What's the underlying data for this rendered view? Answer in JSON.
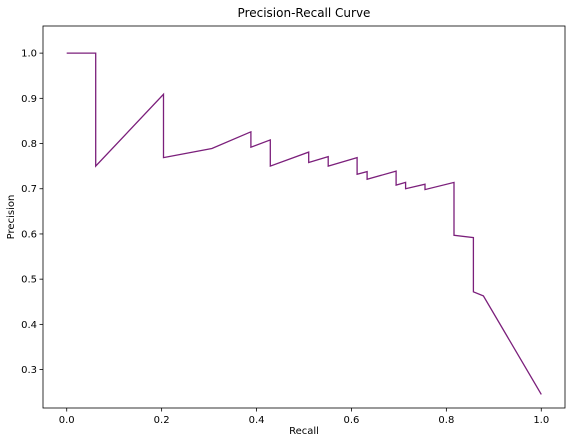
{
  "chart_data": {
    "type": "line",
    "title": "Precision-Recall Curve",
    "xlabel": "Recall",
    "ylabel": "Precision",
    "xlim": [
      -0.05,
      1.05
    ],
    "ylim": [
      0.215,
      1.06
    ],
    "xticks": [
      0.0,
      0.2,
      0.4,
      0.6,
      0.8,
      1.0
    ],
    "xtick_labels": [
      "0.0",
      "0.2",
      "0.4",
      "0.6",
      "0.8",
      "1.0"
    ],
    "yticks": [
      0.3,
      0.4,
      0.5,
      0.6,
      0.7,
      0.8,
      0.9,
      1.0
    ],
    "ytick_labels": [
      "0.3",
      "0.4",
      "0.5",
      "0.6",
      "0.7",
      "0.8",
      "0.9",
      "1.0"
    ],
    "grid": false,
    "legend": "none",
    "line_color": "#7b1f7b",
    "series": [
      {
        "x": [
          0.0,
          0.061,
          0.061,
          0.204,
          0.204,
          0.306,
          0.388,
          0.388,
          0.429,
          0.429,
          0.51,
          0.51,
          0.551,
          0.551,
          0.612,
          0.612,
          0.633,
          0.633,
          0.694,
          0.694,
          0.714,
          0.714,
          0.755,
          0.755,
          0.816,
          0.816,
          0.857,
          0.857,
          0.878,
          1.0
        ],
        "y": [
          1.0,
          1.0,
          0.75,
          0.909,
          0.769,
          0.789,
          0.826,
          0.792,
          0.808,
          0.75,
          0.781,
          0.758,
          0.771,
          0.75,
          0.769,
          0.732,
          0.738,
          0.721,
          0.739,
          0.708,
          0.714,
          0.7,
          0.71,
          0.698,
          0.714,
          0.597,
          0.592,
          0.472,
          0.463,
          0.245
        ]
      }
    ]
  }
}
